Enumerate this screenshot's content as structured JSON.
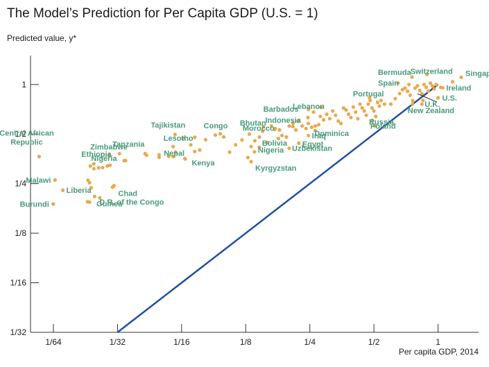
{
  "chart_data": {
    "type": "scatter",
    "title": "The Model’s Prediction for Per Capita GDP (U.S. = 1)",
    "ylabel": "Predicted value, y*",
    "xlabel": "Per capita GDP, 2014",
    "scale": "log2",
    "xlim": [
      0.0122,
      1.55
    ],
    "ylim": [
      0.03125,
      1.5
    ],
    "x_ticks": [
      {
        "value": 0.015625,
        "label": "1/64"
      },
      {
        "value": 0.03125,
        "label": "1/32"
      },
      {
        "value": 0.0625,
        "label": "1/16"
      },
      {
        "value": 0.125,
        "label": "1/8"
      },
      {
        "value": 0.25,
        "label": "1/4"
      },
      {
        "value": 0.5,
        "label": "1/2"
      },
      {
        "value": 1,
        "label": "1"
      }
    ],
    "y_ticks": [
      {
        "value": 0.03125,
        "label": "1/32"
      },
      {
        "value": 0.0625,
        "label": "1/16"
      },
      {
        "value": 0.125,
        "label": "1/8"
      },
      {
        "value": 0.25,
        "label": "1/4"
      },
      {
        "value": 0.5,
        "label": "1/2"
      },
      {
        "value": 1,
        "label": "1"
      }
    ],
    "reference_line": {
      "x": [
        0.03125,
        1
      ],
      "y": [
        0.03125,
        1
      ]
    },
    "colors": {
      "points": "#e8a94e",
      "labels": "#4a9a7a",
      "line": "#1f4fa0",
      "axis": "#333333"
    },
    "labeled_points": [
      {
        "name": "Central African Republic",
        "x": 0.0134,
        "y": 0.365
      },
      {
        "name": "Malawi",
        "x": 0.0159,
        "y": 0.263
      },
      {
        "name": "Burundi",
        "x": 0.0156,
        "y": 0.188
      },
      {
        "name": "Liberia",
        "x": 0.0173,
        "y": 0.228
      },
      {
        "name": "Nigeria",
        "x": 0.0242,
        "y": 0.33
      },
      {
        "name": "Ethiopia",
        "x": 0.0233,
        "y": 0.32
      },
      {
        "name": "Zimbabwe",
        "x": 0.0285,
        "y": 0.372
      },
      {
        "name": "Tanzania",
        "x": 0.0319,
        "y": 0.38
      },
      {
        "name": "Chad",
        "x": 0.0301,
        "y": 0.243
      },
      {
        "name": "Guinea",
        "x": 0.0231,
        "y": 0.193
      },
      {
        "name": "D.R. of the Congo",
        "x": 0.0244,
        "y": 0.209
      },
      {
        "name": "Lesotho",
        "x": 0.0634,
        "y": 0.472
      },
      {
        "name": "Tajikistan",
        "x": 0.0582,
        "y": 0.497
      },
      {
        "name": "Congo",
        "x": 0.0949,
        "y": 0.502
      },
      {
        "name": "Nepal",
        "x": 0.0543,
        "y": 0.366
      },
      {
        "name": "Kenya",
        "x": 0.0647,
        "y": 0.355
      },
      {
        "name": "Bhutan",
        "x": 0.1514,
        "y": 0.553
      },
      {
        "name": "Morocco",
        "x": 0.1708,
        "y": 0.533
      },
      {
        "name": "Bolivia",
        "x": 0.1448,
        "y": 0.416
      },
      {
        "name": "Nigeria",
        "x": 0.1374,
        "y": 0.39
      },
      {
        "name": "Kyrgyzstan",
        "x": 0.1325,
        "y": 0.34
      },
      {
        "name": "Uzbekistan",
        "x": 0.2001,
        "y": 0.41
      },
      {
        "name": "Egypt",
        "x": 0.2218,
        "y": 0.44
      },
      {
        "name": "Iraq",
        "x": 0.2462,
        "y": 0.49
      },
      {
        "name": "Dominica",
        "x": 0.2649,
        "y": 0.525
      },
      {
        "name": "Indonesia",
        "x": 0.2085,
        "y": 0.581
      },
      {
        "name": "Barbados",
        "x": 0.2462,
        "y": 0.705
      },
      {
        "name": "Lebanon",
        "x": 0.2825,
        "y": 0.726
      },
      {
        "name": "Portugal",
        "x": 0.477,
        "y": 0.83
      },
      {
        "name": "Russia",
        "x": 0.492,
        "y": 0.605
      },
      {
        "name": "Poland",
        "x": 0.503,
        "y": 0.56
      },
      {
        "name": "Bermuda",
        "x": 0.754,
        "y": 1.11
      },
      {
        "name": "Spain",
        "x": 0.649,
        "y": 1.02
      },
      {
        "name": "Switzerland",
        "x": 0.887,
        "y": 1.15
      },
      {
        "name": "Singapore",
        "x": 1.285,
        "y": 1.105
      },
      {
        "name": "Ireland",
        "x": 1.052,
        "y": 0.955
      },
      {
        "name": "U.S.",
        "x": 1.0,
        "y": 0.83
      },
      {
        "name": "U.K.",
        "x": 0.84,
        "y": 0.76
      },
      {
        "name": "New Zealand",
        "x": 0.759,
        "y": 0.76
      }
    ],
    "points": [
      {
        "x": 0.0134,
        "y": 0.365
      },
      {
        "x": 0.0159,
        "y": 0.263
      },
      {
        "x": 0.0156,
        "y": 0.188
      },
      {
        "x": 0.0173,
        "y": 0.228
      },
      {
        "x": 0.0226,
        "y": 0.194
      },
      {
        "x": 0.0235,
        "y": 0.236
      },
      {
        "x": 0.0227,
        "y": 0.262
      },
      {
        "x": 0.0231,
        "y": 0.253
      },
      {
        "x": 0.0242,
        "y": 0.308
      },
      {
        "x": 0.0255,
        "y": 0.312
      },
      {
        "x": 0.0266,
        "y": 0.313
      },
      {
        "x": 0.028,
        "y": 0.32
      },
      {
        "x": 0.0288,
        "y": 0.323
      },
      {
        "x": 0.0296,
        "y": 0.238
      },
      {
        "x": 0.0258,
        "y": 0.205
      },
      {
        "x": 0.0336,
        "y": 0.345
      },
      {
        "x": 0.0341,
        "y": 0.345
      },
      {
        "x": 0.0421,
        "y": 0.38
      },
      {
        "x": 0.0428,
        "y": 0.372
      },
      {
        "x": 0.049,
        "y": 0.361
      },
      {
        "x": 0.049,
        "y": 0.374
      },
      {
        "x": 0.0585,
        "y": 0.388
      },
      {
        "x": 0.057,
        "y": 0.42
      },
      {
        "x": 0.057,
        "y": 0.365
      },
      {
        "x": 0.065,
        "y": 0.353
      },
      {
        "x": 0.069,
        "y": 0.43
      },
      {
        "x": 0.072,
        "y": 0.392
      },
      {
        "x": 0.076,
        "y": 0.4
      },
      {
        "x": 0.072,
        "y": 0.478
      },
      {
        "x": 0.081,
        "y": 0.462
      },
      {
        "x": 0.09,
        "y": 0.493
      },
      {
        "x": 0.0985,
        "y": 0.48
      },
      {
        "x": 0.105,
        "y": 0.388
      },
      {
        "x": 0.112,
        "y": 0.43
      },
      {
        "x": 0.12,
        "y": 0.46
      },
      {
        "x": 0.128,
        "y": 0.36
      },
      {
        "x": 0.1325,
        "y": 0.42
      },
      {
        "x": 0.138,
        "y": 0.455
      },
      {
        "x": 0.13,
        "y": 0.5
      },
      {
        "x": 0.145,
        "y": 0.48
      },
      {
        "x": 0.15,
        "y": 0.52
      },
      {
        "x": 0.158,
        "y": 0.445
      },
      {
        "x": 0.165,
        "y": 0.56
      },
      {
        "x": 0.172,
        "y": 0.54
      },
      {
        "x": 0.18,
        "y": 0.53
      },
      {
        "x": 0.185,
        "y": 0.49
      },
      {
        "x": 0.178,
        "y": 0.47
      },
      {
        "x": 0.194,
        "y": 0.48
      },
      {
        "x": 0.2,
        "y": 0.56
      },
      {
        "x": 0.208,
        "y": 0.555
      },
      {
        "x": 0.215,
        "y": 0.53
      },
      {
        "x": 0.22,
        "y": 0.6
      },
      {
        "x": 0.23,
        "y": 0.56
      },
      {
        "x": 0.24,
        "y": 0.54
      },
      {
        "x": 0.246,
        "y": 0.58
      },
      {
        "x": 0.255,
        "y": 0.55
      },
      {
        "x": 0.265,
        "y": 0.56
      },
      {
        "x": 0.275,
        "y": 0.57
      },
      {
        "x": 0.245,
        "y": 0.63
      },
      {
        "x": 0.26,
        "y": 0.68
      },
      {
        "x": 0.28,
        "y": 0.64
      },
      {
        "x": 0.29,
        "y": 0.61
      },
      {
        "x": 0.3,
        "y": 0.66
      },
      {
        "x": 0.31,
        "y": 0.62
      },
      {
        "x": 0.32,
        "y": 0.69
      },
      {
        "x": 0.33,
        "y": 0.65
      },
      {
        "x": 0.34,
        "y": 0.6
      },
      {
        "x": 0.35,
        "y": 0.58
      },
      {
        "x": 0.36,
        "y": 0.72
      },
      {
        "x": 0.37,
        "y": 0.7
      },
      {
        "x": 0.38,
        "y": 0.66
      },
      {
        "x": 0.39,
        "y": 0.63
      },
      {
        "x": 0.4,
        "y": 0.73
      },
      {
        "x": 0.41,
        "y": 0.68
      },
      {
        "x": 0.42,
        "y": 0.62
      },
      {
        "x": 0.43,
        "y": 0.76
      },
      {
        "x": 0.44,
        "y": 0.72
      },
      {
        "x": 0.45,
        "y": 0.69
      },
      {
        "x": 0.46,
        "y": 0.65
      },
      {
        "x": 0.47,
        "y": 0.76
      },
      {
        "x": 0.48,
        "y": 0.8
      },
      {
        "x": 0.49,
        "y": 0.72
      },
      {
        "x": 0.5,
        "y": 0.69
      },
      {
        "x": 0.51,
        "y": 0.64
      },
      {
        "x": 0.52,
        "y": 0.78
      },
      {
        "x": 0.53,
        "y": 0.74
      },
      {
        "x": 0.54,
        "y": 0.8
      },
      {
        "x": 0.56,
        "y": 0.76
      },
      {
        "x": 0.6,
        "y": 0.76
      },
      {
        "x": 0.63,
        "y": 0.82
      },
      {
        "x": 0.66,
        "y": 0.88
      },
      {
        "x": 0.68,
        "y": 0.93
      },
      {
        "x": 0.7,
        "y": 0.95
      },
      {
        "x": 0.72,
        "y": 0.91
      },
      {
        "x": 0.74,
        "y": 0.86
      },
      {
        "x": 0.76,
        "y": 0.8
      },
      {
        "x": 0.78,
        "y": 0.95
      },
      {
        "x": 0.8,
        "y": 0.98
      },
      {
        "x": 0.82,
        "y": 0.92
      },
      {
        "x": 0.84,
        "y": 0.88
      },
      {
        "x": 0.86,
        "y": 1.0
      },
      {
        "x": 0.88,
        "y": 0.96
      },
      {
        "x": 0.9,
        "y": 0.91
      },
      {
        "x": 0.92,
        "y": 1.02
      },
      {
        "x": 0.94,
        "y": 0.98
      },
      {
        "x": 0.96,
        "y": 0.94
      },
      {
        "x": 0.98,
        "y": 1.0
      },
      {
        "x": 1.0,
        "y": 0.83
      },
      {
        "x": 1.03,
        "y": 0.96
      },
      {
        "x": 0.85,
        "y": 0.8
      },
      {
        "x": 1.17,
        "y": 1.04
      },
      {
        "x": 1.285,
        "y": 1.105
      },
      {
        "x": 0.73,
        "y": 1.0
      }
    ]
  }
}
